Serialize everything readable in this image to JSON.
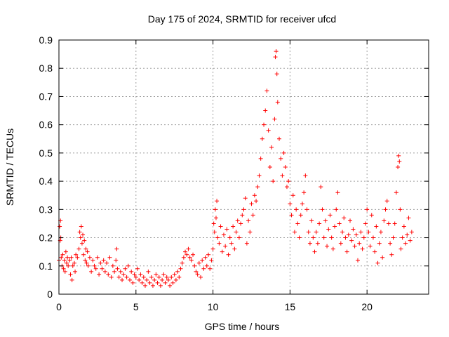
{
  "chart_data": {
    "type": "scatter",
    "title": "Day 175 of 2024, SRMTID for receiver ufcd",
    "xlabel": "GPS time / hours",
    "ylabel": "SRMTID / TECUs",
    "xlim": [
      0,
      24
    ],
    "ylim": [
      0,
      0.9
    ],
    "xticks": [
      0,
      5,
      10,
      15,
      20
    ],
    "yticks": [
      0,
      0.1,
      0.2,
      0.3,
      0.4,
      0.5,
      0.6,
      0.7,
      0.8,
      0.9
    ],
    "xtick_labels": [
      "0",
      "5",
      "10",
      "15",
      "20"
    ],
    "ytick_labels": [
      "0",
      "0.1",
      "0.2",
      "0.3",
      "0.4",
      "0.5",
      "0.6",
      "0.7",
      "0.8",
      "0.9"
    ],
    "grid": true,
    "marker": "plus",
    "color": "#ff0000",
    "series": [
      {
        "name": "SRMTID",
        "points": [
          [
            0.0,
            0.12
          ],
          [
            0.05,
            0.24
          ],
          [
            0.08,
            0.19
          ],
          [
            0.1,
            0.26
          ],
          [
            0.12,
            0.2
          ],
          [
            0.15,
            0.13
          ],
          [
            0.2,
            0.1
          ],
          [
            0.25,
            0.14
          ],
          [
            0.3,
            0.09
          ],
          [
            0.35,
            0.12
          ],
          [
            0.4,
            0.08
          ],
          [
            0.45,
            0.15
          ],
          [
            0.5,
            0.11
          ],
          [
            0.55,
            0.13
          ],
          [
            0.6,
            0.1
          ],
          [
            0.7,
            0.12
          ],
          [
            0.75,
            0.07
          ],
          [
            0.8,
            0.13
          ],
          [
            0.85,
            0.05
          ],
          [
            0.9,
            0.1
          ],
          [
            1.0,
            0.11
          ],
          [
            1.05,
            0.08
          ],
          [
            1.1,
            0.14
          ],
          [
            1.2,
            0.13
          ],
          [
            1.3,
            0.16
          ],
          [
            1.35,
            0.22
          ],
          [
            1.4,
            0.2
          ],
          [
            1.45,
            0.24
          ],
          [
            1.5,
            0.18
          ],
          [
            1.55,
            0.21
          ],
          [
            1.6,
            0.14
          ],
          [
            1.65,
            0.19
          ],
          [
            1.7,
            0.12
          ],
          [
            1.75,
            0.16
          ],
          [
            1.8,
            0.11
          ],
          [
            1.85,
            0.15
          ],
          [
            1.9,
            0.1
          ],
          [
            2.0,
            0.13
          ],
          [
            2.1,
            0.08
          ],
          [
            2.2,
            0.12
          ],
          [
            2.3,
            0.1
          ],
          [
            2.4,
            0.09
          ],
          [
            2.5,
            0.13
          ],
          [
            2.6,
            0.07
          ],
          [
            2.7,
            0.11
          ],
          [
            2.8,
            0.09
          ],
          [
            2.9,
            0.12
          ],
          [
            3.0,
            0.08
          ],
          [
            3.1,
            0.11
          ],
          [
            3.2,
            0.07
          ],
          [
            3.3,
            0.13
          ],
          [
            3.4,
            0.06
          ],
          [
            3.5,
            0.1
          ],
          [
            3.6,
            0.08
          ],
          [
            3.7,
            0.12
          ],
          [
            3.75,
            0.16
          ],
          [
            3.8,
            0.09
          ],
          [
            3.9,
            0.06
          ],
          [
            4.0,
            0.08
          ],
          [
            4.1,
            0.05
          ],
          [
            4.2,
            0.07
          ],
          [
            4.3,
            0.09
          ],
          [
            4.4,
            0.06
          ],
          [
            4.5,
            0.1
          ],
          [
            4.6,
            0.05
          ],
          [
            4.7,
            0.08
          ],
          [
            4.8,
            0.04
          ],
          [
            4.9,
            0.07
          ],
          [
            5.0,
            0.06
          ],
          [
            5.1,
            0.09
          ],
          [
            5.2,
            0.05
          ],
          [
            5.3,
            0.07
          ],
          [
            5.4,
            0.04
          ],
          [
            5.5,
            0.06
          ],
          [
            5.6,
            0.03
          ],
          [
            5.7,
            0.05
          ],
          [
            5.8,
            0.08
          ],
          [
            5.9,
            0.04
          ],
          [
            6.0,
            0.06
          ],
          [
            6.1,
            0.03
          ],
          [
            6.2,
            0.05
          ],
          [
            6.3,
            0.07
          ],
          [
            6.4,
            0.04
          ],
          [
            6.5,
            0.06
          ],
          [
            6.6,
            0.03
          ],
          [
            6.7,
            0.05
          ],
          [
            6.8,
            0.07
          ],
          [
            6.9,
            0.04
          ],
          [
            7.0,
            0.06
          ],
          [
            7.1,
            0.05
          ],
          [
            7.2,
            0.03
          ],
          [
            7.3,
            0.06
          ],
          [
            7.4,
            0.04
          ],
          [
            7.5,
            0.07
          ],
          [
            7.6,
            0.05
          ],
          [
            7.7,
            0.08
          ],
          [
            7.8,
            0.06
          ],
          [
            7.9,
            0.09
          ],
          [
            8.0,
            0.11
          ],
          [
            8.1,
            0.13
          ],
          [
            8.2,
            0.15
          ],
          [
            8.3,
            0.14
          ],
          [
            8.4,
            0.16
          ],
          [
            8.5,
            0.13
          ],
          [
            8.6,
            0.12
          ],
          [
            8.7,
            0.14
          ],
          [
            8.8,
            0.1
          ],
          [
            8.9,
            0.08
          ],
          [
            9.0,
            0.07
          ],
          [
            9.1,
            0.11
          ],
          [
            9.2,
            0.06
          ],
          [
            9.3,
            0.12
          ],
          [
            9.4,
            0.09
          ],
          [
            9.5,
            0.13
          ],
          [
            9.6,
            0.1
          ],
          [
            9.7,
            0.14
          ],
          [
            9.8,
            0.09
          ],
          [
            9.9,
            0.12
          ],
          [
            10.0,
            0.16
          ],
          [
            10.05,
            0.25
          ],
          [
            10.1,
            0.22
          ],
          [
            10.15,
            0.3
          ],
          [
            10.2,
            0.27
          ],
          [
            10.25,
            0.33
          ],
          [
            10.3,
            0.2
          ],
          [
            10.4,
            0.18
          ],
          [
            10.5,
            0.24
          ],
          [
            10.6,
            0.15
          ],
          [
            10.7,
            0.21
          ],
          [
            10.8,
            0.17
          ],
          [
            10.9,
            0.23
          ],
          [
            11.0,
            0.14
          ],
          [
            11.1,
            0.2
          ],
          [
            11.2,
            0.18
          ],
          [
            11.3,
            0.24
          ],
          [
            11.4,
            0.16
          ],
          [
            11.5,
            0.22
          ],
          [
            11.6,
            0.26
          ],
          [
            11.7,
            0.2
          ],
          [
            11.8,
            0.25
          ],
          [
            11.9,
            0.28
          ],
          [
            12.0,
            0.3
          ],
          [
            12.1,
            0.34
          ],
          [
            12.2,
            0.18
          ],
          [
            12.3,
            0.26
          ],
          [
            12.4,
            0.22
          ],
          [
            12.5,
            0.32
          ],
          [
            12.6,
            0.28
          ],
          [
            12.7,
            0.35
          ],
          [
            12.8,
            0.33
          ],
          [
            12.9,
            0.38
          ],
          [
            13.0,
            0.42
          ],
          [
            13.1,
            0.48
          ],
          [
            13.2,
            0.55
          ],
          [
            13.3,
            0.6
          ],
          [
            13.4,
            0.65
          ],
          [
            13.5,
            0.72
          ],
          [
            13.6,
            0.58
          ],
          [
            13.7,
            0.45
          ],
          [
            13.8,
            0.52
          ],
          [
            13.9,
            0.4
          ],
          [
            14.0,
            0.62
          ],
          [
            14.05,
            0.84
          ],
          [
            14.1,
            0.86
          ],
          [
            14.15,
            0.78
          ],
          [
            14.2,
            0.68
          ],
          [
            14.3,
            0.55
          ],
          [
            14.4,
            0.48
          ],
          [
            14.5,
            0.42
          ],
          [
            14.6,
            0.5
          ],
          [
            14.7,
            0.45
          ],
          [
            14.8,
            0.38
          ],
          [
            14.9,
            0.4
          ],
          [
            15.0,
            0.32
          ],
          [
            15.1,
            0.28
          ],
          [
            15.2,
            0.35
          ],
          [
            15.3,
            0.22
          ],
          [
            15.4,
            0.3
          ],
          [
            15.5,
            0.25
          ],
          [
            15.6,
            0.2
          ],
          [
            15.7,
            0.28
          ],
          [
            15.8,
            0.32
          ],
          [
            15.9,
            0.36
          ],
          [
            16.0,
            0.42
          ],
          [
            16.1,
            0.3
          ],
          [
            16.2,
            0.22
          ],
          [
            16.3,
            0.18
          ],
          [
            16.4,
            0.26
          ],
          [
            16.5,
            0.2
          ],
          [
            16.6,
            0.15
          ],
          [
            16.7,
            0.22
          ],
          [
            16.8,
            0.18
          ],
          [
            16.9,
            0.25
          ],
          [
            17.0,
            0.38
          ],
          [
            17.1,
            0.3
          ],
          [
            17.2,
            0.2
          ],
          [
            17.3,
            0.26
          ],
          [
            17.4,
            0.17
          ],
          [
            17.5,
            0.23
          ],
          [
            17.6,
            0.28
          ],
          [
            17.7,
            0.2
          ],
          [
            17.8,
            0.16
          ],
          [
            17.9,
            0.24
          ],
          [
            18.0,
            0.3
          ],
          [
            18.1,
            0.36
          ],
          [
            18.2,
            0.25
          ],
          [
            18.3,
            0.18
          ],
          [
            18.4,
            0.22
          ],
          [
            18.5,
            0.27
          ],
          [
            18.6,
            0.2
          ],
          [
            18.7,
            0.15
          ],
          [
            18.8,
            0.21
          ],
          [
            18.9,
            0.26
          ],
          [
            19.0,
            0.19
          ],
          [
            19.1,
            0.23
          ],
          [
            19.2,
            0.17
          ],
          [
            19.3,
            0.21
          ],
          [
            19.4,
            0.12
          ],
          [
            19.5,
            0.18
          ],
          [
            19.6,
            0.22
          ],
          [
            19.7,
            0.16
          ],
          [
            19.8,
            0.2
          ],
          [
            19.9,
            0.25
          ],
          [
            20.0,
            0.3
          ],
          [
            20.1,
            0.22
          ],
          [
            20.2,
            0.17
          ],
          [
            20.3,
            0.28
          ],
          [
            20.4,
            0.2
          ],
          [
            20.5,
            0.15
          ],
          [
            20.6,
            0.24
          ],
          [
            20.7,
            0.11
          ],
          [
            20.8,
            0.18
          ],
          [
            20.9,
            0.22
          ],
          [
            21.0,
            0.13
          ],
          [
            21.1,
            0.26
          ],
          [
            21.2,
            0.3
          ],
          [
            21.3,
            0.33
          ],
          [
            21.4,
            0.25
          ],
          [
            21.5,
            0.18
          ],
          [
            21.6,
            0.14
          ],
          [
            21.7,
            0.2
          ],
          [
            21.8,
            0.25
          ],
          [
            21.9,
            0.36
          ],
          [
            22.0,
            0.45
          ],
          [
            22.05,
            0.49
          ],
          [
            22.1,
            0.47
          ],
          [
            22.15,
            0.3
          ],
          [
            22.2,
            0.16
          ],
          [
            22.3,
            0.2
          ],
          [
            22.4,
            0.24
          ],
          [
            22.5,
            0.18
          ],
          [
            22.6,
            0.21
          ],
          [
            22.7,
            0.27
          ],
          [
            22.8,
            0.19
          ],
          [
            22.9,
            0.22
          ]
        ]
      }
    ]
  }
}
